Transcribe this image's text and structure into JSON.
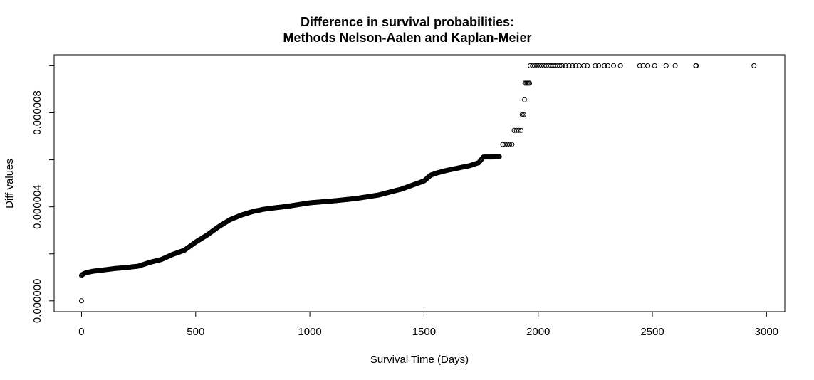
{
  "chart_data": {
    "type": "scatter",
    "title": "Difference in survival probabilities:",
    "subtitle": "Methods Nelson-Aalen and Kaplan-Meier",
    "xlabel": "Survival Time (Days)",
    "ylabel": "Diff values",
    "xlim": [
      -120,
      3080
    ],
    "ylim": [
      -4.6e-07,
      1.0466e-05
    ],
    "x_ticks": [
      0,
      500,
      1000,
      1500,
      2000,
      2500,
      3000
    ],
    "x_tick_labels": [
      "0",
      "500",
      "1000",
      "1500",
      "2000",
      "2500",
      "3000"
    ],
    "y_ticks": [
      0,
      4e-06,
      8e-06
    ],
    "y_tick_labels": [
      "0.000000",
      "0.000004",
      "0.000008"
    ],
    "y_ticks_unlabeled": [
      2e-06,
      6e-06,
      1e-05
    ],
    "grid": false,
    "marker": "open-circle",
    "curve_keypoints": [
      [
        0,
        1.08e-06
      ],
      [
        5,
        1.13e-06
      ],
      [
        20,
        1.2e-06
      ],
      [
        50,
        1.26e-06
      ],
      [
        100,
        1.32e-06
      ],
      [
        150,
        1.38e-06
      ],
      [
        200,
        1.42e-06
      ],
      [
        250,
        1.48e-06
      ],
      [
        300,
        1.64e-06
      ],
      [
        350,
        1.76e-06
      ],
      [
        400,
        1.98e-06
      ],
      [
        450,
        2.15e-06
      ],
      [
        500,
        2.5e-06
      ],
      [
        550,
        2.8e-06
      ],
      [
        600,
        3.15e-06
      ],
      [
        650,
        3.45e-06
      ],
      [
        700,
        3.65e-06
      ],
      [
        750,
        3.8e-06
      ],
      [
        800,
        3.9e-06
      ],
      [
        900,
        4.02e-06
      ],
      [
        1000,
        4.17e-06
      ],
      [
        1100,
        4.25e-06
      ],
      [
        1200,
        4.35e-06
      ],
      [
        1300,
        4.5e-06
      ],
      [
        1400,
        4.75e-06
      ],
      [
        1500,
        5.1e-06
      ],
      [
        1530,
        5.35e-06
      ],
      [
        1560,
        5.45e-06
      ],
      [
        1600,
        5.55e-06
      ],
      [
        1650,
        5.65e-06
      ],
      [
        1700,
        5.75e-06
      ],
      [
        1740,
        5.88e-06
      ],
      [
        1760,
        6.12e-06
      ],
      [
        1800,
        6.12e-06
      ],
      [
        1830,
        6.13e-06
      ]
    ],
    "step_points": [
      [
        1845,
        6.65e-06
      ],
      [
        1855,
        6.65e-06
      ],
      [
        1865,
        6.65e-06
      ],
      [
        1875,
        6.65e-06
      ],
      [
        1885,
        6.65e-06
      ],
      [
        1895,
        7.25e-06
      ],
      [
        1905,
        7.25e-06
      ],
      [
        1915,
        7.25e-06
      ],
      [
        1925,
        7.25e-06
      ],
      [
        1930,
        7.92e-06
      ],
      [
        1937,
        7.92e-06
      ],
      [
        1940,
        8.55e-06
      ],
      [
        1942,
        9.26e-06
      ],
      [
        1947,
        9.26e-06
      ],
      [
        1952,
        9.26e-06
      ],
      [
        1957,
        9.26e-06
      ],
      [
        1962,
        9.26e-06
      ]
    ],
    "top_points": [
      [
        1965,
        1e-05
      ],
      [
        1975,
        1e-05
      ],
      [
        1985,
        1e-05
      ],
      [
        1995,
        1e-05
      ],
      [
        2005,
        1e-05
      ],
      [
        2015,
        1e-05
      ],
      [
        2025,
        1e-05
      ],
      [
        2035,
        1e-05
      ],
      [
        2045,
        1e-05
      ],
      [
        2055,
        1e-05
      ],
      [
        2065,
        1e-05
      ],
      [
        2075,
        1e-05
      ],
      [
        2085,
        1e-05
      ],
      [
        2095,
        1e-05
      ],
      [
        2105,
        1e-05
      ],
      [
        2120,
        1e-05
      ],
      [
        2135,
        1e-05
      ],
      [
        2150,
        1e-05
      ],
      [
        2165,
        1e-05
      ],
      [
        2180,
        1e-05
      ],
      [
        2200,
        1e-05
      ],
      [
        2215,
        1e-05
      ],
      [
        2250,
        1e-05
      ],
      [
        2265,
        1e-05
      ],
      [
        2290,
        1e-05
      ],
      [
        2305,
        1e-05
      ],
      [
        2330,
        1e-05
      ],
      [
        2360,
        1e-05
      ],
      [
        2445,
        1e-05
      ],
      [
        2460,
        1e-05
      ],
      [
        2480,
        1e-05
      ],
      [
        2510,
        1e-05
      ],
      [
        2560,
        1e-05
      ],
      [
        2600,
        1e-05
      ],
      [
        2690,
        1e-05
      ],
      [
        2692,
        1e-05
      ],
      [
        2945,
        1e-05
      ]
    ],
    "outlier_points": [
      [
        0,
        0
      ]
    ]
  }
}
